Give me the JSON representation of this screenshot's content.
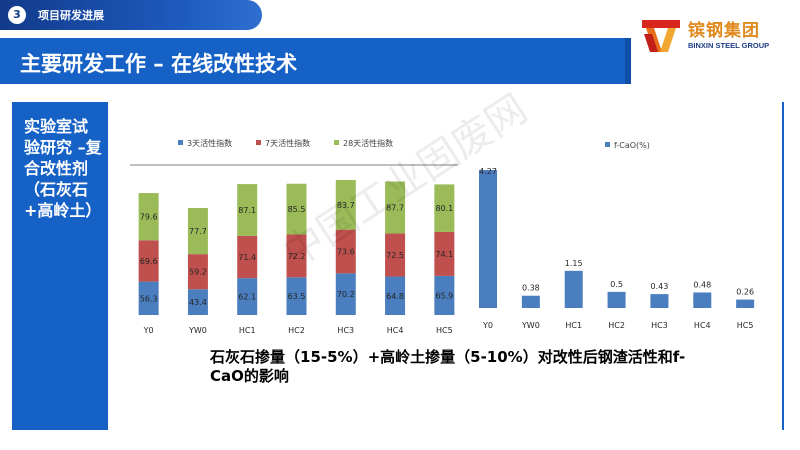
{
  "header": {
    "section_number": "3",
    "section_title": "项目研发进展",
    "page_title": "主要研发工作 – 在线改性技术"
  },
  "logo": {
    "cn": "镔钢集团",
    "en": "BINXIN STEEL GROUP"
  },
  "side_panel": {
    "text": "实验室试验研究 –复合改性剂（石灰石+高岭土）"
  },
  "caption": "石灰石掺量（15-5%）+高岭土掺量（5-10%）对改性后钢渣活性和f-CaO的影响",
  "watermark": "中国工业固废网",
  "colors": {
    "blue": "#4a7ebf",
    "red": "#c0504d",
    "green": "#9bbb59",
    "brand": "#1661c6"
  },
  "chart_data": [
    {
      "type": "bar",
      "stacked": true,
      "categories": [
        "Y0",
        "YW0",
        "HC1",
        "HC2",
        "HC3",
        "HC4",
        "HC5"
      ],
      "series": [
        {
          "name": "3天活性指数",
          "values": [
            56.3,
            43.4,
            62.1,
            63.5,
            70.2,
            64.8,
            65.9
          ]
        },
        {
          "name": "7天活性指数",
          "values": [
            69.6,
            59.2,
            71.4,
            72.2,
            73.6,
            72.5,
            74.1
          ]
        },
        {
          "name": "28天活性指数",
          "values": [
            79.6,
            77.7,
            87.1,
            85.5,
            83.7,
            87.7,
            80.1
          ]
        }
      ],
      "legend_position": "top",
      "data_labels": true
    },
    {
      "type": "bar",
      "categories": [
        "Y0",
        "YW0",
        "HC1",
        "HC2",
        "HC3",
        "HC4",
        "HC5"
      ],
      "series": [
        {
          "name": "f-CaO(%)",
          "values": [
            4.27,
            0.38,
            1.15,
            0.5,
            0.43,
            0.48,
            0.26
          ]
        }
      ],
      "legend_position": "top",
      "data_labels": true
    }
  ]
}
